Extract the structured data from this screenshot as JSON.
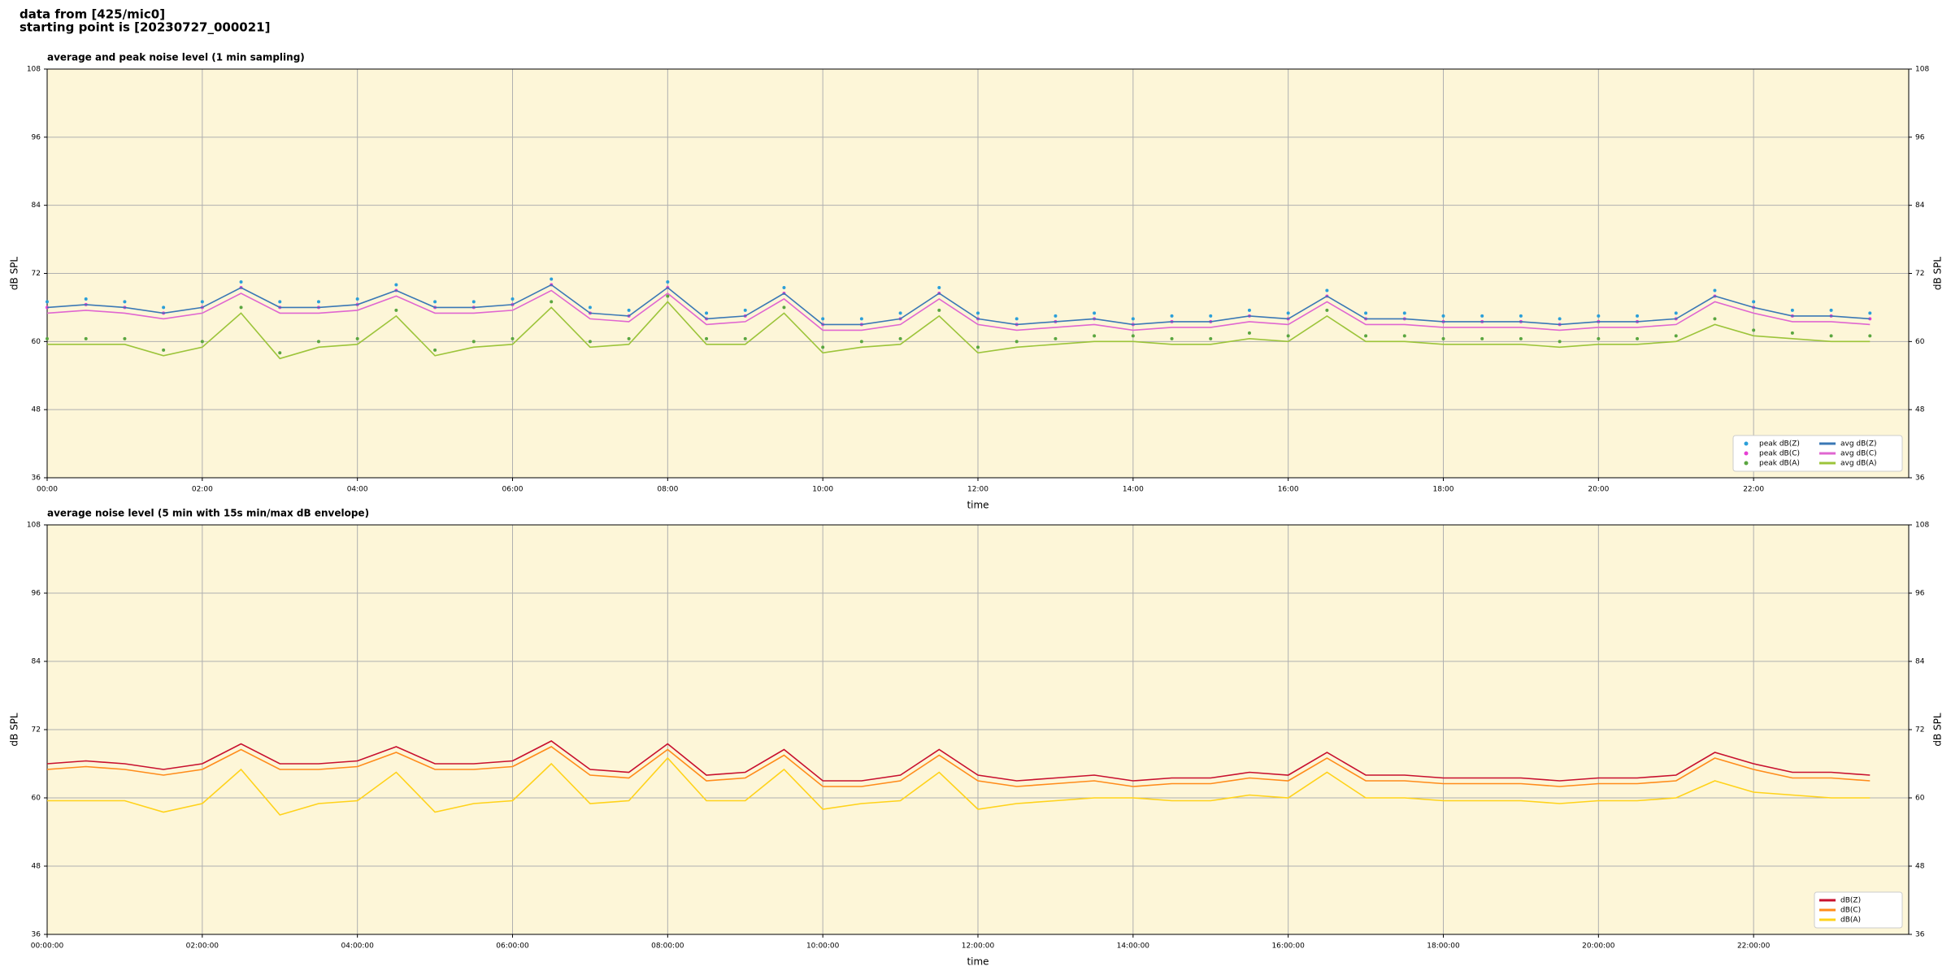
{
  "header": {
    "title": "data from [425/mic0]",
    "subtitle": "starting point is [20230727_000021]"
  },
  "chart_data": [
    {
      "type": "line",
      "title": "average and peak noise level (1 min sampling)",
      "xlabel": "time",
      "ylabel": "dB SPL",
      "y2label": "dB SPL",
      "xlim": [
        0,
        24
      ],
      "ylim": [
        36,
        108
      ],
      "yticks": [
        36,
        48,
        60,
        72,
        84,
        96,
        108
      ],
      "xticks": [
        {
          "value": 0,
          "label": "00:00"
        },
        {
          "value": 2,
          "label": "02:00"
        },
        {
          "value": 4,
          "label": "04:00"
        },
        {
          "value": 6,
          "label": "06:00"
        },
        {
          "value": 8,
          "label": "08:00"
        },
        {
          "value": 10,
          "label": "10:00"
        },
        {
          "value": 12,
          "label": "12:00"
        },
        {
          "value": 14,
          "label": "14:00"
        },
        {
          "value": 16,
          "label": "16:00"
        },
        {
          "value": 18,
          "label": "18:00"
        },
        {
          "value": 20,
          "label": "20:00"
        },
        {
          "value": 22,
          "label": "22:00"
        }
      ],
      "grid": true,
      "legend": "lower right",
      "background": "#fdf6d8",
      "x": [
        0,
        0.5,
        1,
        1.5,
        2,
        2.5,
        3,
        3.5,
        4,
        4.5,
        5,
        5.5,
        6,
        6.5,
        7,
        7.5,
        8,
        8.5,
        9,
        9.5,
        10,
        10.5,
        11,
        11.5,
        12,
        12.5,
        13,
        13.5,
        14,
        14.5,
        15,
        15.5,
        16,
        16.5,
        17,
        17.5,
        18,
        18.5,
        19,
        19.5,
        20,
        20.5,
        21,
        21.5,
        22,
        22.5,
        23,
        23.5
      ],
      "series": [
        {
          "name": "peak dB(Z)",
          "color": "#2b9fd9",
          "style": "dot",
          "values": [
            67,
            67.5,
            67,
            66,
            67,
            70.5,
            67,
            67,
            67.5,
            70,
            67,
            67,
            67.5,
            71,
            66,
            65.5,
            70.5,
            65,
            65.5,
            69.5,
            64,
            64,
            65,
            69.5,
            65,
            64,
            64.5,
            65,
            64,
            64.5,
            64.5,
            65.5,
            65,
            69,
            65,
            65,
            64.5,
            64.5,
            64.5,
            64,
            64.5,
            64.5,
            65,
            69,
            67,
            65.5,
            65.5,
            65
          ]
        },
        {
          "name": "peak dB(C)",
          "color": "#e63fd4",
          "style": "dot",
          "values": [
            66,
            66.5,
            66,
            65,
            66,
            69.5,
            66,
            66,
            66.5,
            69,
            66,
            66,
            66.5,
            70,
            65,
            64.5,
            69.5,
            64,
            64.5,
            68.5,
            63,
            63,
            64,
            68.5,
            64,
            63,
            63.5,
            64,
            63,
            63.5,
            63.5,
            64.5,
            64,
            68,
            64,
            64,
            63.5,
            63.5,
            63.5,
            63,
            63.5,
            63.5,
            64,
            68,
            66,
            64.5,
            64.5,
            64
          ]
        },
        {
          "name": "peak dB(A)",
          "color": "#5aa640",
          "style": "dot",
          "values": [
            60.5,
            60.5,
            60.5,
            58.5,
            60,
            66,
            58,
            60,
            60.5,
            65.5,
            58.5,
            60,
            60.5,
            67,
            60,
            60.5,
            68,
            60.5,
            60.5,
            66,
            59,
            60,
            60.5,
            65.5,
            59,
            60,
            60.5,
            61,
            61,
            60.5,
            60.5,
            61.5,
            61,
            65.5,
            61,
            61,
            60.5,
            60.5,
            60.5,
            60,
            60.5,
            60.5,
            61,
            64,
            62,
            61.5,
            61,
            61
          ]
        },
        {
          "name": "avg dB(Z)",
          "color": "#3a78b5",
          "style": "line",
          "values": [
            66,
            66.5,
            66,
            65,
            66,
            69.5,
            66,
            66,
            66.5,
            69,
            66,
            66,
            66.5,
            70,
            65,
            64.5,
            69.5,
            64,
            64.5,
            68.5,
            63,
            63,
            64,
            68.5,
            64,
            63,
            63.5,
            64,
            63,
            63.5,
            63.5,
            64.5,
            64,
            68,
            64,
            64,
            63.5,
            63.5,
            63.5,
            63,
            63.5,
            63.5,
            64,
            68,
            66,
            64.5,
            64.5,
            64
          ]
        },
        {
          "name": "avg dB(C)",
          "color": "#e066d0",
          "style": "line",
          "values": [
            65,
            65.5,
            65,
            64,
            65,
            68.5,
            65,
            65,
            65.5,
            68,
            65,
            65,
            65.5,
            69,
            64,
            63.5,
            68.5,
            63,
            63.5,
            67.5,
            62,
            62,
            63,
            67.5,
            63,
            62,
            62.5,
            63,
            62,
            62.5,
            62.5,
            63.5,
            63,
            67,
            63,
            63,
            62.5,
            62.5,
            62.5,
            62,
            62.5,
            62.5,
            63,
            67,
            65,
            63.5,
            63.5,
            63
          ]
        },
        {
          "name": "avg dB(A)",
          "color": "#9cc43a",
          "style": "line",
          "values": [
            59.5,
            59.5,
            59.5,
            57.5,
            59,
            65,
            57,
            59,
            59.5,
            64.5,
            57.5,
            59,
            59.5,
            66,
            59,
            59.5,
            67,
            59.5,
            59.5,
            65,
            58,
            59,
            59.5,
            64.5,
            58,
            59,
            59.5,
            60,
            60,
            59.5,
            59.5,
            60.5,
            60,
            64.5,
            60,
            60,
            59.5,
            59.5,
            59.5,
            59,
            59.5,
            59.5,
            60,
            63,
            61,
            60.5,
            60,
            60
          ]
        }
      ]
    },
    {
      "type": "line",
      "title": "average noise level (5 min with 15s min/max dB envelope)",
      "xlabel": "time",
      "ylabel": "dB SPL",
      "y2label": "dB SPL",
      "xlim": [
        0,
        24
      ],
      "ylim": [
        36,
        108
      ],
      "yticks": [
        36,
        48,
        60,
        72,
        84,
        96,
        108
      ],
      "xticks": [
        {
          "value": 0,
          "label": "00:00:00"
        },
        {
          "value": 2,
          "label": "02:00:00"
        },
        {
          "value": 4,
          "label": "04:00:00"
        },
        {
          "value": 6,
          "label": "06:00:00"
        },
        {
          "value": 8,
          "label": "08:00:00"
        },
        {
          "value": 10,
          "label": "10:00:00"
        },
        {
          "value": 12,
          "label": "12:00:00"
        },
        {
          "value": 14,
          "label": "14:00:00"
        },
        {
          "value": 16,
          "label": "16:00:00"
        },
        {
          "value": 18,
          "label": "18:00:00"
        },
        {
          "value": 20,
          "label": "20:00:00"
        },
        {
          "value": 22,
          "label": "22:00:00"
        }
      ],
      "grid": true,
      "legend": "lower right",
      "background": "#fdf6d8",
      "x": [
        0,
        0.5,
        1,
        1.5,
        2,
        2.5,
        3,
        3.5,
        4,
        4.5,
        5,
        5.5,
        6,
        6.5,
        7,
        7.5,
        8,
        8.5,
        9,
        9.5,
        10,
        10.5,
        11,
        11.5,
        12,
        12.5,
        13,
        13.5,
        14,
        14.5,
        15,
        15.5,
        16,
        16.5,
        17,
        17.5,
        18,
        18.5,
        19,
        19.5,
        20,
        20.5,
        21,
        21.5,
        22,
        22.5,
        23,
        23.5
      ],
      "series": [
        {
          "name": "dB(Z)",
          "color": "#c8102e",
          "style": "line",
          "values": [
            66,
            66.5,
            66,
            65,
            66,
            69.5,
            66,
            66,
            66.5,
            69,
            66,
            66,
            66.5,
            70,
            65,
            64.5,
            69.5,
            64,
            64.5,
            68.5,
            63,
            63,
            64,
            68.5,
            64,
            63,
            63.5,
            64,
            63,
            63.5,
            63.5,
            64.5,
            64,
            68,
            64,
            64,
            63.5,
            63.5,
            63.5,
            63,
            63.5,
            63.5,
            64,
            68,
            66,
            64.5,
            64.5,
            64
          ]
        },
        {
          "name": "dB(C)",
          "color": "#ff8c1a",
          "style": "line",
          "values": [
            65,
            65.5,
            65,
            64,
            65,
            68.5,
            65,
            65,
            65.5,
            68,
            65,
            65,
            65.5,
            69,
            64,
            63.5,
            68.5,
            63,
            63.5,
            67.5,
            62,
            62,
            63,
            67.5,
            63,
            62,
            62.5,
            63,
            62,
            62.5,
            62.5,
            63.5,
            63,
            67,
            63,
            63,
            62.5,
            62.5,
            62.5,
            62,
            62.5,
            62.5,
            63,
            67,
            65,
            63.5,
            63.5,
            63
          ]
        },
        {
          "name": "dB(A)",
          "color": "#ffd21a",
          "style": "line",
          "values": [
            59.5,
            59.5,
            59.5,
            57.5,
            59,
            65,
            57,
            59,
            59.5,
            64.5,
            57.5,
            59,
            59.5,
            66,
            59,
            59.5,
            67,
            59.5,
            59.5,
            65,
            58,
            59,
            59.5,
            64.5,
            58,
            59,
            59.5,
            60,
            60,
            59.5,
            59.5,
            60.5,
            60,
            64.5,
            60,
            60,
            59.5,
            59.5,
            59.5,
            59,
            59.5,
            59.5,
            60,
            63,
            61,
            60.5,
            60,
            60
          ]
        }
      ]
    }
  ]
}
